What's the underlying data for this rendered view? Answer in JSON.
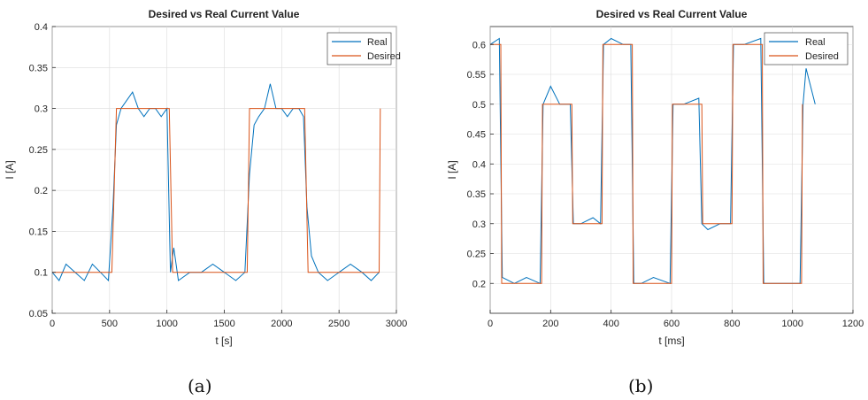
{
  "chart_data": [
    {
      "type": "line",
      "title": "Desired vs Real Current Value",
      "xlabel": "t [s]",
      "ylabel": "I [A]",
      "xlim": [
        0,
        3000
      ],
      "ylim": [
        0.05,
        0.4
      ],
      "xticks": [
        "0",
        "500",
        "1000",
        "1500",
        "2000",
        "2500",
        "3000"
      ],
      "yticks": [
        "0.05",
        "0.1",
        "0.15",
        "0.2",
        "0.25",
        "0.3",
        "0.35",
        "0.4"
      ],
      "grid": true,
      "legend_position": "top-right",
      "series": [
        {
          "name": "Real",
          "color": "#0072BD",
          "x": [
            0,
            60,
            120,
            200,
            280,
            350,
            420,
            490,
            530,
            560,
            600,
            650,
            700,
            750,
            800,
            850,
            900,
            950,
            1000,
            1030,
            1060,
            1100,
            1200,
            1300,
            1400,
            1500,
            1600,
            1680,
            1720,
            1760,
            1800,
            1850,
            1900,
            1950,
            2000,
            2050,
            2100,
            2150,
            2190,
            2220,
            2260,
            2320,
            2400,
            2500,
            2600,
            2700,
            2780,
            2850
          ],
          "y": [
            0.1,
            0.09,
            0.11,
            0.1,
            0.09,
            0.11,
            0.1,
            0.09,
            0.18,
            0.28,
            0.3,
            0.31,
            0.32,
            0.3,
            0.29,
            0.3,
            0.3,
            0.29,
            0.3,
            0.1,
            0.13,
            0.09,
            0.1,
            0.1,
            0.11,
            0.1,
            0.09,
            0.1,
            0.22,
            0.28,
            0.29,
            0.3,
            0.33,
            0.3,
            0.3,
            0.29,
            0.3,
            0.3,
            0.29,
            0.18,
            0.12,
            0.1,
            0.09,
            0.1,
            0.11,
            0.1,
            0.09,
            0.1
          ]
        },
        {
          "name": "Desired",
          "color": "#D95319",
          "x": [
            0,
            520,
            560,
            1020,
            1050,
            1700,
            1720,
            2200,
            2230,
            2850,
            2860
          ],
          "y": [
            0.1,
            0.1,
            0.3,
            0.3,
            0.1,
            0.1,
            0.3,
            0.3,
            0.1,
            0.1,
            0.3
          ]
        }
      ]
    },
    {
      "type": "line",
      "title": "Desired vs Real Current Value",
      "xlabel": "t [ms]",
      "ylabel": "I [A]",
      "xlim": [
        0,
        1200
      ],
      "ylim": [
        0.15,
        0.63
      ],
      "xticks": [
        "0",
        "200",
        "400",
        "600",
        "800",
        "1000",
        "1200"
      ],
      "yticks": [
        "0.2",
        "0.25",
        "0.3",
        "0.35",
        "0.4",
        "0.45",
        "0.5",
        "0.55",
        "0.6"
      ],
      "grid": true,
      "legend_position": "top-right",
      "series": [
        {
          "name": "Real",
          "color": "#0072BD",
          "x": [
            0,
            30,
            40,
            80,
            120,
            165,
            175,
            200,
            230,
            265,
            275,
            300,
            340,
            365,
            375,
            400,
            440,
            465,
            475,
            500,
            540,
            595,
            605,
            640,
            690,
            700,
            720,
            760,
            795,
            805,
            840,
            895,
            905,
            960,
            1025,
            1035,
            1045,
            1075
          ],
          "y": [
            0.6,
            0.61,
            0.21,
            0.2,
            0.21,
            0.2,
            0.5,
            0.53,
            0.5,
            0.5,
            0.3,
            0.3,
            0.31,
            0.3,
            0.6,
            0.61,
            0.6,
            0.6,
            0.2,
            0.2,
            0.21,
            0.2,
            0.5,
            0.5,
            0.51,
            0.3,
            0.29,
            0.3,
            0.3,
            0.6,
            0.6,
            0.61,
            0.2,
            0.2,
            0.2,
            0.5,
            0.56,
            0.5
          ]
        },
        {
          "name": "Desired",
          "color": "#D95319",
          "x": [
            0,
            35,
            38,
            170,
            173,
            270,
            273,
            370,
            373,
            470,
            473,
            600,
            603,
            700,
            703,
            800,
            803,
            900,
            903,
            1030,
            1033
          ],
          "y": [
            0.6,
            0.6,
            0.2,
            0.2,
            0.5,
            0.5,
            0.3,
            0.3,
            0.6,
            0.6,
            0.2,
            0.2,
            0.5,
            0.5,
            0.3,
            0.3,
            0.6,
            0.6,
            0.2,
            0.2,
            0.5
          ]
        }
      ]
    }
  ],
  "captions": [
    "(a)",
    "(b)"
  ]
}
